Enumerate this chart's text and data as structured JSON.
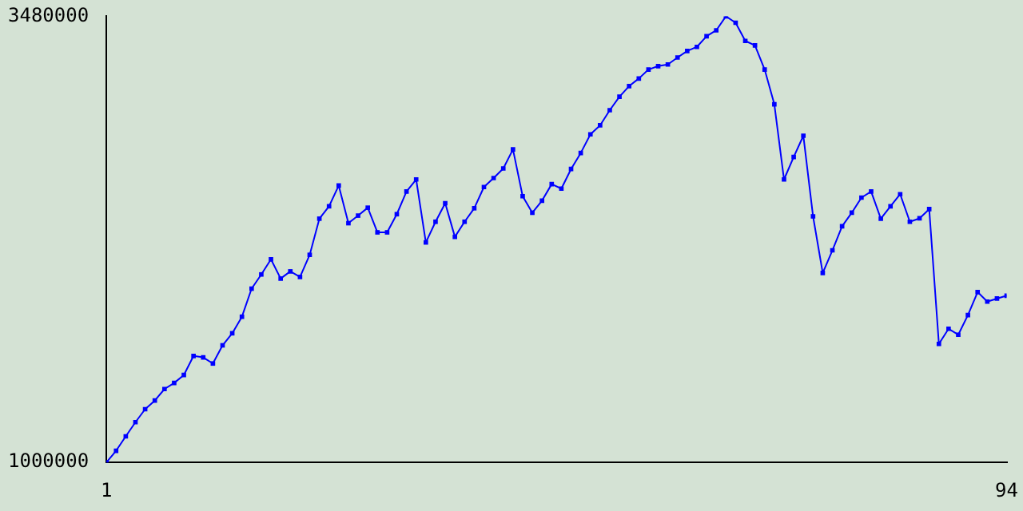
{
  "chart_data": {
    "type": "line",
    "x": [
      1,
      2,
      3,
      4,
      5,
      6,
      7,
      8,
      9,
      10,
      11,
      12,
      13,
      14,
      15,
      16,
      17,
      18,
      19,
      20,
      21,
      22,
      23,
      24,
      25,
      26,
      27,
      28,
      29,
      30,
      31,
      32,
      33,
      34,
      35,
      36,
      37,
      38,
      39,
      40,
      41,
      42,
      43,
      44,
      45,
      46,
      47,
      48,
      49,
      50,
      51,
      52,
      53,
      54,
      55,
      56,
      57,
      58,
      59,
      60,
      61,
      62,
      63,
      64,
      65,
      66,
      67,
      68,
      69,
      70,
      71,
      72,
      73,
      74,
      75,
      76,
      77,
      78,
      79,
      80,
      81,
      82,
      83,
      84,
      85,
      86,
      87,
      88,
      89,
      90,
      91,
      92,
      93,
      94
    ],
    "series": [
      {
        "color": "#0000ff",
        "values": [
          1000000,
          1065000,
          1145000,
          1224000,
          1296000,
          1344000,
          1408000,
          1442000,
          1486000,
          1592000,
          1584000,
          1550000,
          1651000,
          1718000,
          1810000,
          1966000,
          2045000,
          2129000,
          2022000,
          2062000,
          2031000,
          2154000,
          2355000,
          2424000,
          2539000,
          2330000,
          2372000,
          2416000,
          2279000,
          2279000,
          2380000,
          2506000,
          2573000,
          2223000,
          2338000,
          2441000,
          2254000,
          2338000,
          2413000,
          2531000,
          2581000,
          2634000,
          2740000,
          2480000,
          2388000,
          2455000,
          2547000,
          2522000,
          2631000,
          2720000,
          2824000,
          2874000,
          2958000,
          3033000,
          3092000,
          3134000,
          3184000,
          3203000,
          3212000,
          3251000,
          3287000,
          3310000,
          3369000,
          3402000,
          3480000,
          3444000,
          3343000,
          3318000,
          3184000,
          2991000,
          2573000,
          2698000,
          2816000,
          2368000,
          2053000,
          2179000,
          2313000,
          2388000,
          2472000,
          2506000,
          2355000,
          2424000,
          2491000,
          2338000,
          2357000,
          2408000,
          1659000,
          1743000,
          1710000,
          1819000,
          1947000,
          1894000,
          1911000,
          1927000
        ]
      }
    ],
    "xlim": [
      1,
      94
    ],
    "xticks": [
      1,
      94
    ],
    "ylim": [
      1000000,
      3480000
    ],
    "yticks": [
      1000000,
      3480000
    ],
    "grid": false,
    "marker": "square",
    "line_style": "solid"
  }
}
